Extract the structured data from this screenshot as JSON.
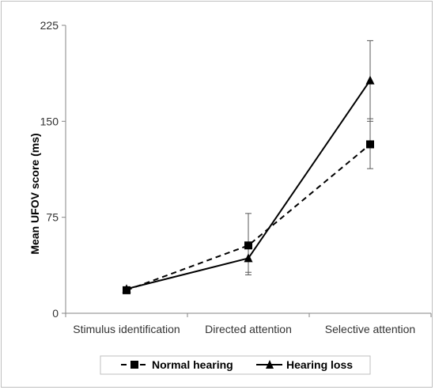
{
  "chart_data": {
    "type": "line",
    "title": "",
    "xlabel": "",
    "ylabel": "Mean UFOV score (ms)",
    "categories": [
      "Stimulus identification",
      "Directed attention",
      "Selective attention"
    ],
    "ylim": [
      0,
      225
    ],
    "yticks": [
      "0",
      "75",
      "150",
      "225"
    ],
    "grid": false,
    "legend_position": "bottom",
    "series": [
      {
        "name": "Normal hearing",
        "values": [
          18,
          53,
          132
        ],
        "error_high": [
          null,
          78,
          152
        ],
        "error_low": [
          null,
          30,
          113
        ],
        "line_style": "dashed",
        "marker": "square",
        "color": "#000000"
      },
      {
        "name": "Hearing loss",
        "values": [
          19,
          43,
          182
        ],
        "error_high": [
          null,
          null,
          213
        ],
        "error_low": [
          null,
          32,
          150
        ],
        "line_style": "solid",
        "marker": "triangle",
        "color": "#000000"
      }
    ]
  }
}
